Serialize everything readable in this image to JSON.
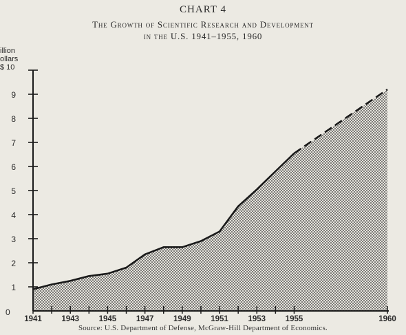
{
  "header": {
    "chart_number": "CHART 4",
    "title_line1": "The Growth of Scientific Research and Development",
    "title_line2": "in the U.S. 1941–1955, 1960"
  },
  "y_axis_label": "illion\nollars\n$ 10",
  "source": "Source: U.S. Department of Defense, McGraw-Hill Department of Economics.",
  "colors": {
    "background": "#eceae3",
    "ink": "#1a1a1a",
    "fill_dots": "#2a2a2a"
  },
  "chart_data": {
    "type": "area",
    "title": "The Growth of Scientific Research and Development in the U.S. 1941–1955, 1960",
    "ylabel": "Billion dollars",
    "xlabel": "",
    "ylim": [
      0,
      10
    ],
    "xlim": [
      1941,
      1960
    ],
    "y_ticks": [
      1,
      2,
      3,
      4,
      5,
      6,
      7,
      8,
      9,
      10
    ],
    "y_tick_labels": [
      "1",
      "2",
      "3",
      "4",
      "5",
      "6",
      "7",
      "8",
      "9",
      "10"
    ],
    "x_ticks": [
      1941,
      1943,
      1945,
      1947,
      1949,
      1951,
      1953,
      1955,
      1960
    ],
    "x_tick_labels": [
      "1941",
      "1943",
      "1945",
      "1947",
      "1949",
      "1951",
      "1953",
      "1955",
      "1960"
    ],
    "y_zero_label": "0",
    "series": [
      {
        "style": "solid",
        "x": [
          1941,
          1942,
          1943,
          1944,
          1945,
          1946,
          1947,
          1948,
          1949,
          1950,
          1951,
          1952,
          1953,
          1954,
          1955
        ],
        "values": [
          0.9,
          1.1,
          1.25,
          1.45,
          1.55,
          1.8,
          2.35,
          2.65,
          2.65,
          2.9,
          3.3,
          4.35,
          5.05,
          5.8,
          6.55
        ]
      },
      {
        "style": "dashed",
        "x": [
          1955,
          1960
        ],
        "values": [
          6.55,
          9.2
        ]
      }
    ]
  }
}
